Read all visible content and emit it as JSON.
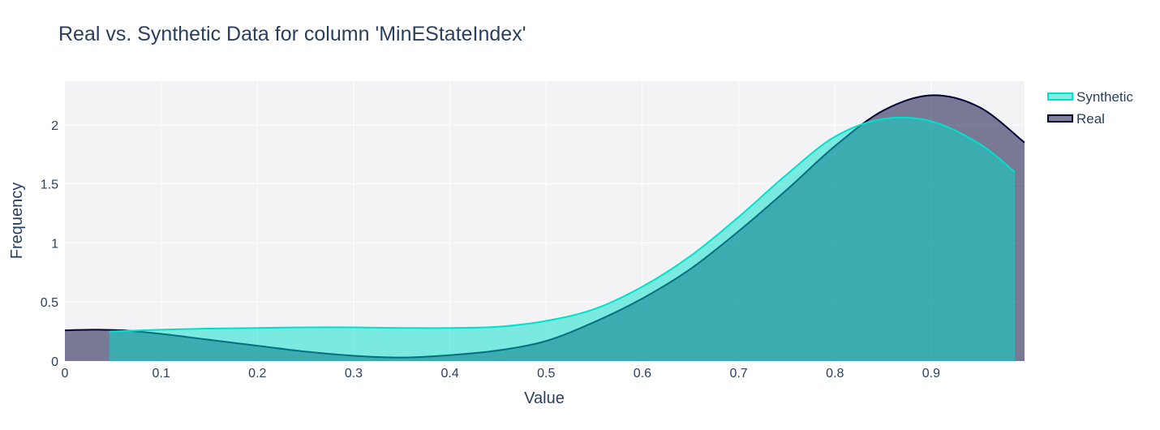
{
  "chart_data": {
    "type": "area",
    "title": "Real vs. Synthetic Data for column 'MinEStateIndex'",
    "xlabel": "Value",
    "ylabel": "Frequency",
    "xlim": [
      0,
      0.997
    ],
    "ylim": [
      0,
      2.37
    ],
    "grid": true,
    "legend_position": "top-right",
    "xticks": [
      0,
      0.1,
      0.2,
      0.3,
      0.4,
      0.5,
      0.6,
      0.7,
      0.8,
      0.9
    ],
    "xtick_labels": [
      "0",
      "0.1",
      "0.2",
      "0.3",
      "0.4",
      "0.5",
      "0.6",
      "0.7",
      "0.8",
      "0.9"
    ],
    "yticks": [
      0,
      0.5,
      1,
      1.5,
      2
    ],
    "ytick_labels": [
      "0",
      "0.5",
      "1",
      "1.5",
      "2"
    ],
    "series": [
      {
        "name": "Real",
        "color": "#000036",
        "fill": "rgba(0,0,54,0.5)",
        "x": [
          0,
          0.03,
          0.06,
          0.1,
          0.15,
          0.2,
          0.25,
          0.3,
          0.35,
          0.4,
          0.45,
          0.5,
          0.55,
          0.6,
          0.65,
          0.7,
          0.75,
          0.8,
          0.85,
          0.9,
          0.95,
          0.997
        ],
        "y": [
          0.26,
          0.265,
          0.26,
          0.23,
          0.18,
          0.13,
          0.08,
          0.045,
          0.03,
          0.05,
          0.09,
          0.17,
          0.33,
          0.53,
          0.78,
          1.1,
          1.45,
          1.82,
          2.12,
          2.25,
          2.15,
          1.85
        ]
      },
      {
        "name": "Synthetic",
        "color": "#01E0C9",
        "fill": "rgba(1,224,201,0.5)",
        "x": [
          0.046,
          0.1,
          0.15,
          0.2,
          0.25,
          0.3,
          0.35,
          0.4,
          0.45,
          0.5,
          0.55,
          0.6,
          0.65,
          0.7,
          0.75,
          0.8,
          0.85,
          0.9,
          0.95,
          0.987
        ],
        "y": [
          0.25,
          0.265,
          0.275,
          0.28,
          0.285,
          0.285,
          0.28,
          0.28,
          0.29,
          0.34,
          0.44,
          0.63,
          0.89,
          1.22,
          1.58,
          1.9,
          2.05,
          2.03,
          1.84,
          1.6
        ]
      }
    ]
  }
}
